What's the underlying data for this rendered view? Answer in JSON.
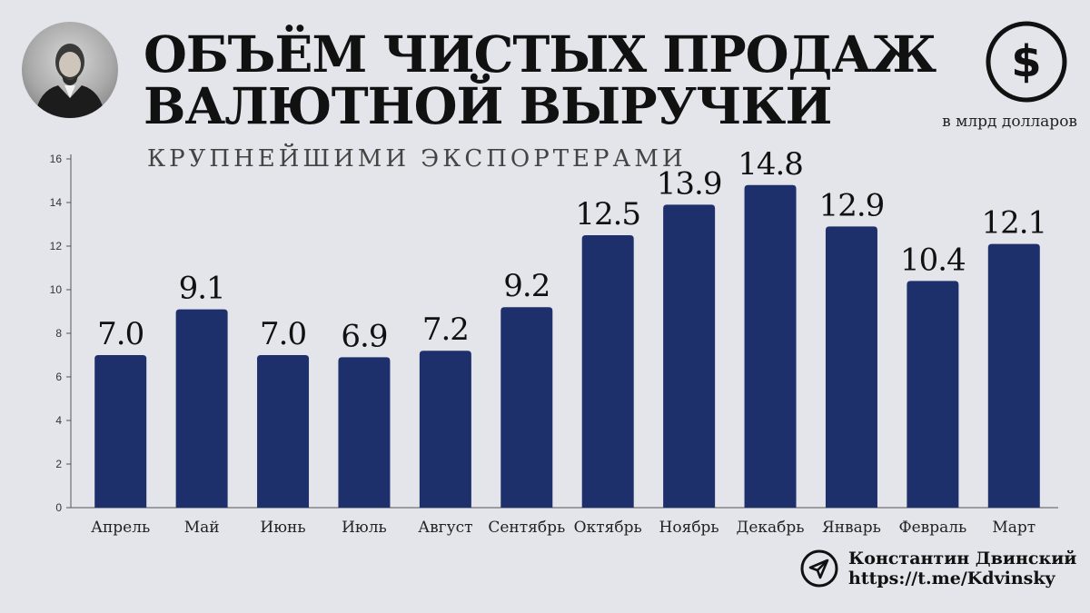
{
  "header": {
    "title_line1": "ОБЪЁМ ЧИСТЫХ ПРОДАЖ",
    "title_line2": "ВАЛЮТНОЙ ВЫРУЧКИ",
    "subtitle": "КРУПНЕЙШИМИ ЭКСПОРТЕРАМИ",
    "units": "в млрд долларов",
    "dollar_symbol": "$"
  },
  "author": {
    "name": "Константин Двинский",
    "link": "https://t.me/Kdvinsky"
  },
  "colors": {
    "bar": "#1e306b",
    "background": "#e4e5ea"
  },
  "chart_data": {
    "type": "bar",
    "categories": [
      "Апрель",
      "Май",
      "Июнь",
      "Июль",
      "Август",
      "Сентябрь",
      "Октябрь",
      "Ноябрь",
      "Декабрь",
      "Январь",
      "Февраль",
      "Март"
    ],
    "values": [
      7.0,
      9.1,
      7.0,
      6.9,
      7.2,
      9.2,
      12.5,
      13.9,
      14.8,
      12.9,
      10.4,
      12.1
    ],
    "value_labels": [
      "7.0",
      "9.1",
      "7.0",
      "6.9",
      "7.2",
      "9.2",
      "12.5",
      "13.9",
      "14.8",
      "12.9",
      "10.4",
      "12.1"
    ],
    "ylim": [
      0,
      16
    ],
    "yticks": [
      "0",
      "2",
      "4",
      "6",
      "8",
      "10",
      "12",
      "14",
      "16"
    ],
    "grid": false,
    "xlabel": "",
    "ylabel": ""
  }
}
